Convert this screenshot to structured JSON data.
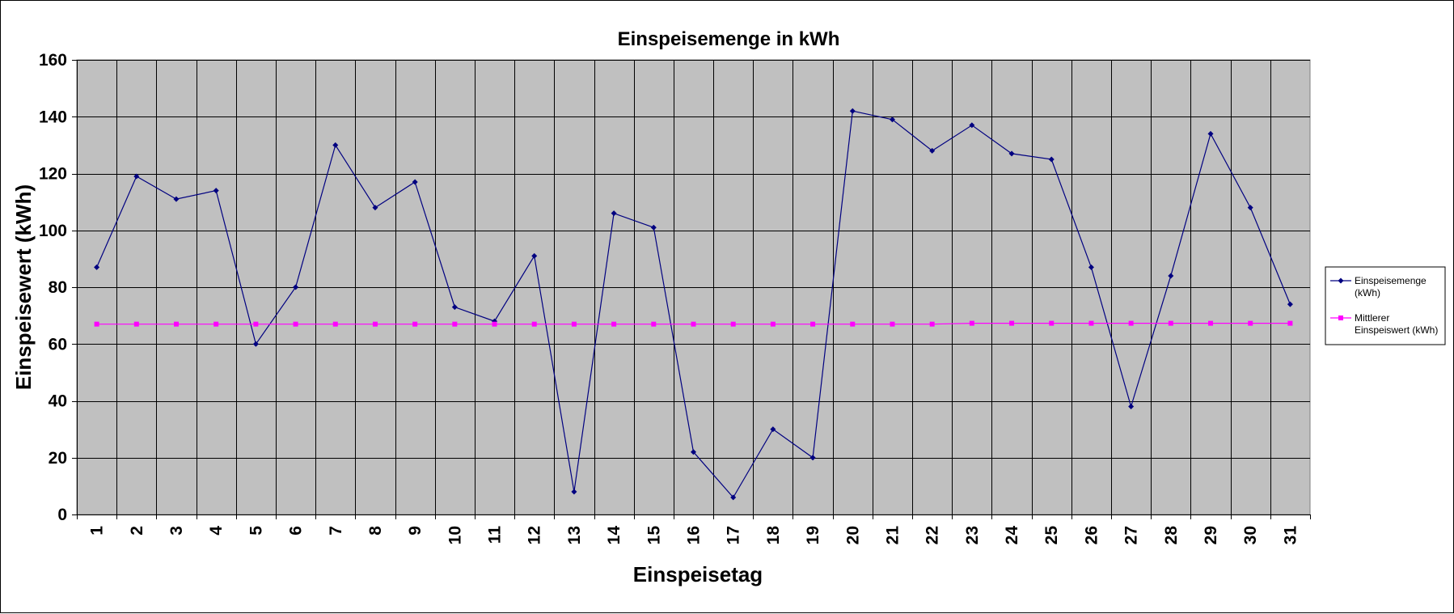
{
  "chart_data": {
    "type": "line",
    "title": "Einspeisemenge in kWh",
    "xlabel": "Einspeisetag",
    "ylabel": "Einspeisewert  (kWh)",
    "ylim": [
      0,
      160
    ],
    "yticks": [
      0,
      20,
      40,
      60,
      80,
      100,
      120,
      140,
      160
    ],
    "grid": true,
    "legend_position": "right",
    "plot_background": "#c0c0c0",
    "categories": [
      "1",
      "2",
      "3",
      "4",
      "5",
      "6",
      "7",
      "8",
      "9",
      "10",
      "11",
      "12",
      "13",
      "14",
      "15",
      "16",
      "17",
      "18",
      "19",
      "20",
      "21",
      "22",
      "23",
      "24",
      "25",
      "26",
      "27",
      "28",
      "29",
      "30",
      "31"
    ],
    "series": [
      {
        "name_lines": [
          "Einspeisemenge",
          "(kWh)"
        ],
        "color": "#000080",
        "marker": "diamond",
        "values": [
          87,
          119,
          111,
          114,
          60,
          80,
          130,
          108,
          117,
          73,
          68,
          91,
          8,
          106,
          101,
          22,
          6,
          30,
          20,
          142,
          139,
          128,
          137,
          127,
          125,
          87,
          38,
          84,
          134,
          108,
          74
        ]
      },
      {
        "name_lines": [
          "Mittlerer",
          "Einspeiswert (kWh)"
        ],
        "color": "#ff00ff",
        "marker": "square",
        "values": [
          67,
          67,
          67,
          67,
          67,
          67,
          67,
          67,
          67,
          67,
          67,
          67,
          67,
          67,
          67,
          67,
          67,
          67,
          67,
          67,
          67,
          67,
          67.3,
          67.3,
          67.3,
          67.3,
          67.3,
          67.3,
          67.3,
          67.3,
          67.3
        ]
      }
    ]
  }
}
